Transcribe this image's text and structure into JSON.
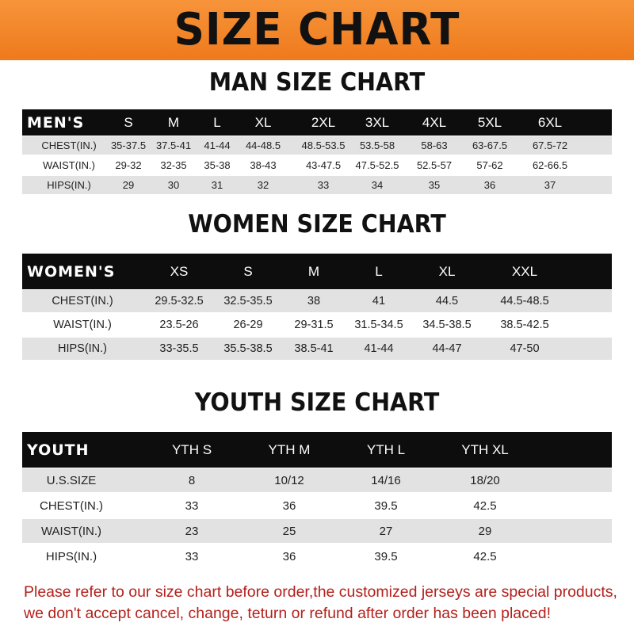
{
  "title": "SIZE CHART",
  "colors": {
    "banner": "#f08426",
    "header_row": "#0d0d0d",
    "stripe": "#e2e2e2",
    "note": "#b4201c"
  },
  "men": {
    "heading": "MAN SIZE CHART",
    "header": [
      "MEN'S",
      "S",
      "M",
      "L",
      "XL",
      "2XL",
      "3XL",
      "4XL",
      "5XL",
      "6XL"
    ],
    "rows": [
      [
        "CHEST(IN.)",
        "35-37.5",
        "37.5-41",
        "41-44",
        "44-48.5",
        "48.5-53.5",
        "53.5-58",
        "58-63",
        "63-67.5",
        "67.5-72"
      ],
      [
        "WAIST(IN.)",
        "29-32",
        "32-35",
        "35-38",
        "38-43",
        "43-47.5",
        "47.5-52.5",
        "52.5-57",
        "57-62",
        "62-66.5"
      ],
      [
        "HIPS(IN.)",
        "29",
        "30",
        "31",
        "32",
        "33",
        "34",
        "35",
        "36",
        "37"
      ]
    ]
  },
  "women": {
    "heading": "WOMEN SIZE CHART",
    "header": [
      "WOMEN'S",
      "XS",
      "S",
      "M",
      "L",
      "XL",
      "XXL"
    ],
    "rows": [
      [
        "CHEST(IN.)",
        "29.5-32.5",
        "32.5-35.5",
        "38",
        "41",
        "44.5",
        "44.5-48.5"
      ],
      [
        "WAIST(IN.)",
        "23.5-26",
        "26-29",
        "29-31.5",
        "31.5-34.5",
        "34.5-38.5",
        "38.5-42.5"
      ],
      [
        "HIPS(IN.)",
        "33-35.5",
        "35.5-38.5",
        "38.5-41",
        "41-44",
        "44-47",
        "47-50"
      ]
    ]
  },
  "youth": {
    "heading": "YOUTH SIZE CHART",
    "header": [
      "YOUTH",
      "YTH S",
      "YTH M",
      "YTH L",
      "YTH XL"
    ],
    "rows": [
      [
        "U.S.SIZE",
        "8",
        "10/12",
        "14/16",
        "18/20"
      ],
      [
        "CHEST(IN.)",
        "33",
        "36",
        "39.5",
        "42.5"
      ],
      [
        "WAIST(IN.)",
        "23",
        "25",
        "27",
        "29"
      ],
      [
        "HIPS(IN.)",
        "33",
        "36",
        "39.5",
        "42.5"
      ]
    ]
  },
  "note": [
    "Please refer to our size chart before order,the customized jerseys are special products,",
    "we don't accept cancel, change, teturn or refund after order has been placed!"
  ]
}
